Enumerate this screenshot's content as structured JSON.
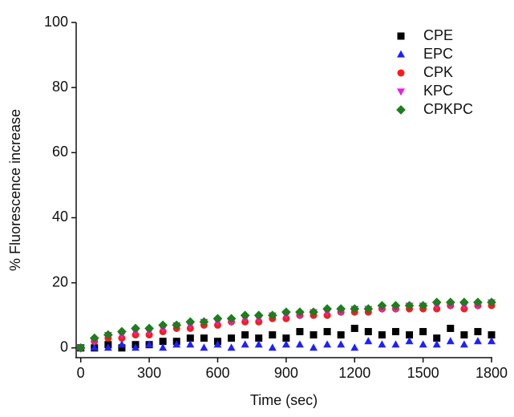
{
  "chart_data": {
    "type": "scatter",
    "x_label": "Time (sec)",
    "y_label": "% Fluorescence increase",
    "x": [
      0,
      60,
      120,
      180,
      240,
      300,
      360,
      420,
      480,
      540,
      600,
      660,
      720,
      780,
      840,
      900,
      960,
      1020,
      1080,
      1140,
      1200,
      1260,
      1320,
      1380,
      1440,
      1500,
      1560,
      1620,
      1680,
      1740,
      1800
    ],
    "series": [
      {
        "name": "CPE",
        "color": "#000000",
        "marker": "square",
        "values": [
          0,
          0,
          1,
          0,
          1,
          1,
          2,
          2,
          3,
          3,
          2,
          3,
          4,
          3,
          4,
          3,
          5,
          4,
          5,
          4,
          6,
          5,
          4,
          5,
          4,
          5,
          3,
          6,
          4,
          5,
          4
        ]
      },
      {
        "name": "EPC",
        "color": "#1f1fff",
        "marker": "triangle-up",
        "values": [
          0,
          0,
          0,
          1,
          0,
          1,
          0,
          1,
          1,
          0,
          1,
          0,
          1,
          1,
          0,
          1,
          1,
          0,
          1,
          1,
          0,
          2,
          1,
          1,
          2,
          1,
          1,
          2,
          1,
          2,
          2
        ]
      },
      {
        "name": "CPK",
        "color": "#ff1a1a",
        "marker": "circle",
        "values": [
          0,
          2,
          3,
          3,
          4,
          4,
          5,
          6,
          6,
          7,
          7,
          8,
          8,
          8,
          9,
          9,
          10,
          10,
          10,
          11,
          11,
          11,
          12,
          12,
          12,
          12,
          12,
          13,
          12,
          13,
          13
        ]
      },
      {
        "name": "KPC",
        "color": "#e61ee6",
        "marker": "triangle-down",
        "values": [
          0,
          2,
          4,
          4,
          5,
          5,
          6,
          7,
          7,
          8,
          8,
          8,
          9,
          9,
          10,
          10,
          10,
          11,
          11,
          11,
          12,
          12,
          12,
          12,
          13,
          13,
          13,
          13,
          13,
          13,
          14
        ]
      },
      {
        "name": "CPKPC",
        "color": "#1e7d1e",
        "marker": "diamond",
        "values": [
          0,
          3,
          4,
          5,
          6,
          6,
          7,
          7,
          8,
          8,
          9,
          9,
          10,
          10,
          10,
          11,
          11,
          11,
          12,
          12,
          12,
          12,
          13,
          13,
          13,
          13,
          14,
          14,
          14,
          14,
          14
        ]
      }
    ],
    "xlim": [
      -20,
      1800
    ],
    "ylim": [
      -3,
      100
    ],
    "xticks": [
      0,
      300,
      600,
      900,
      1200,
      1500,
      1800
    ],
    "yticks": [
      0,
      20,
      40,
      60,
      80,
      100
    ],
    "legend": "upper right"
  }
}
